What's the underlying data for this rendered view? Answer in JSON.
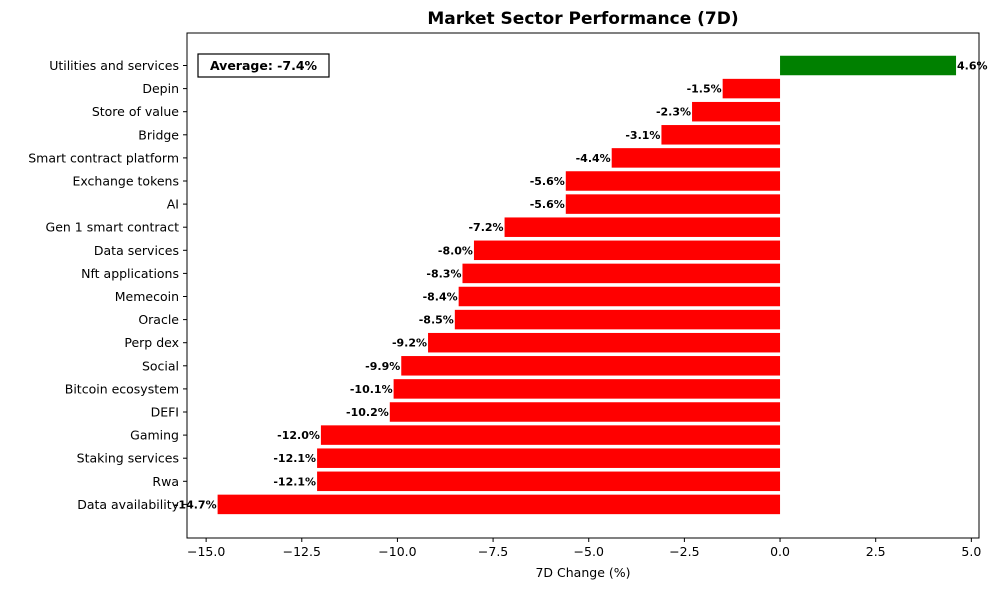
{
  "chart_data": {
    "type": "bar",
    "orientation": "horizontal",
    "title": "Market Sector Performance (7D)",
    "xlabel": "7D Change (%)",
    "ylabel": "",
    "xlim": [
      -15.5,
      5.2
    ],
    "x_ticks": [
      -15.0,
      -12.5,
      -10.0,
      -7.5,
      -5.0,
      -2.5,
      0.0,
      2.5,
      5.0
    ],
    "x_tick_labels": [
      "−15.0",
      "−12.5",
      "−10.0",
      "−7.5",
      "−5.0",
      "−2.5",
      "0.0",
      "2.5",
      "5.0"
    ],
    "grid": false,
    "categories": [
      "Utilities and services",
      "Depin",
      "Store of value",
      "Bridge",
      "Smart contract platform",
      "Exchange tokens",
      "AI",
      "Gen 1 smart contract",
      "Data services",
      "Nft applications",
      "Memecoin",
      "Oracle",
      "Perp dex",
      "Social",
      "Bitcoin ecosystem",
      "DEFI",
      "Gaming",
      "Staking services",
      "Rwa",
      "Data availability"
    ],
    "values": [
      4.6,
      -1.5,
      -2.3,
      -3.1,
      -4.4,
      -5.6,
      -5.6,
      -7.2,
      -8.0,
      -8.3,
      -8.4,
      -8.5,
      -9.2,
      -9.9,
      -10.1,
      -10.2,
      -12.0,
      -12.1,
      -12.1,
      -14.7
    ],
    "value_labels": [
      "4.6%",
      "-1.5%",
      "-2.3%",
      "-3.1%",
      "-4.4%",
      "-5.6%",
      "-5.6%",
      "-7.2%",
      "-8.0%",
      "-8.3%",
      "-8.4%",
      "-8.5%",
      "-9.2%",
      "-9.9%",
      "-10.1%",
      "-10.2%",
      "-12.0%",
      "-12.1%",
      "-12.1%",
      "-14.7%"
    ],
    "colors": {
      "positive": "#008000",
      "negative": "#ff0000"
    },
    "annotation": {
      "text": "Average: -7.4%",
      "position": "top-left"
    }
  }
}
